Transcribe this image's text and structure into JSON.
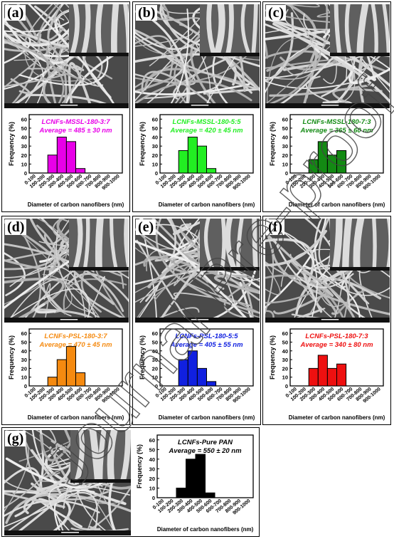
{
  "panels": [
    {
      "label": "(a)",
      "chart_data": {
        "type": "bar",
        "title": "LCNFs-MSSL-180-3:7",
        "subtitle": "Average = 485 ± 30 nm",
        "color": "#e800e8",
        "categories": [
          "0-100",
          "100-200",
          "200-300",
          "300-400",
          "400-500",
          "500-600",
          "600-700",
          "700-800",
          "800-900",
          "900-1000"
        ],
        "values": [
          0,
          0,
          20,
          40,
          35,
          5,
          0,
          0,
          0,
          0
        ],
        "xlabel": "Diameter of carbon nanofibers (nm)",
        "ylabel": "Frequency (%)",
        "ylim": [
          0,
          65
        ],
        "yticks": [
          0,
          10,
          20,
          30,
          40,
          50,
          60
        ]
      }
    },
    {
      "label": "(b)",
      "chart_data": {
        "type": "bar",
        "title": "LCNFs-MSSL-180-5:5",
        "subtitle": "Average = 420 ± 45 nm",
        "color": "#22ee22",
        "categories": [
          "0-100",
          "100-200",
          "200-300",
          "300-400",
          "400-500",
          "500-600",
          "600-700",
          "700-800",
          "800-900",
          "900-1000"
        ],
        "values": [
          0,
          0,
          25,
          40,
          30,
          5,
          0,
          0,
          0,
          0
        ],
        "xlabel": "Diameter of carbon nanofibers (nm)",
        "ylabel": "Frequency (%)",
        "ylim": [
          0,
          65
        ],
        "yticks": [
          0,
          10,
          20,
          30,
          40,
          50,
          60
        ]
      }
    },
    {
      "label": "(c)",
      "chart_data": {
        "type": "bar",
        "title": "LCNFs-MSSL-180-7:3",
        "subtitle": "Average = 365 ± 60 nm",
        "color": "#138a13",
        "categories": [
          "0-100",
          "100-200",
          "200-300",
          "300-400",
          "400-500",
          "500-600",
          "600-700",
          "700-800",
          "800-900",
          "900-1000"
        ],
        "values": [
          0,
          0,
          15,
          35,
          20,
          25,
          0,
          0,
          0,
          0
        ],
        "xlabel": "Diameter of carbon nanofibers (nm)",
        "ylabel": "Frequency (%)",
        "ylim": [
          0,
          65
        ],
        "yticks": [
          0,
          10,
          20,
          30,
          40,
          50,
          60
        ]
      }
    },
    {
      "label": "(d)",
      "chart_data": {
        "type": "bar",
        "title": "LCNFs-PSL-180-3:7",
        "subtitle": "Average = 470 ± 45 nm",
        "color": "#f58a10",
        "categories": [
          "0-100",
          "100-200",
          "200-300",
          "300-400",
          "400-500",
          "500-600",
          "600-700",
          "700-800",
          "800-900",
          "900-1000"
        ],
        "values": [
          0,
          0,
          10,
          30,
          45,
          15,
          0,
          0,
          0,
          0
        ],
        "xlabel": "Diameter of carbon nanofibers (nm)",
        "ylabel": "Frequency (%)",
        "ylim": [
          0,
          65
        ],
        "yticks": [
          0,
          10,
          20,
          30,
          40,
          50,
          60
        ]
      }
    },
    {
      "label": "(e)",
      "chart_data": {
        "type": "bar",
        "title": "LCNFs-PSL-180-5:5",
        "subtitle": "Average = 405 ± 55 nm",
        "color": "#1020e0",
        "categories": [
          "0-100",
          "100-200",
          "200-300",
          "300-400",
          "400-500",
          "500-600",
          "600-700",
          "700-800",
          "800-900",
          "900-1000"
        ],
        "values": [
          0,
          0,
          30,
          40,
          20,
          5,
          0,
          0,
          0,
          0
        ],
        "xlabel": "Diameter of carbon nanofibers (nm)",
        "ylabel": "Frequency (%)",
        "ylim": [
          0,
          65
        ],
        "yticks": [
          0,
          10,
          20,
          30,
          40,
          50,
          60
        ]
      }
    },
    {
      "label": "(f)",
      "chart_data": {
        "type": "bar",
        "title": "LCNFs-PSL-180-7:3",
        "subtitle": "Average = 340 ± 80 nm",
        "color": "#ee1010",
        "categories": [
          "0-100",
          "100-200",
          "200-300",
          "300-400",
          "400-500",
          "500-600",
          "600-700",
          "700-800",
          "800-900",
          "900-1000"
        ],
        "values": [
          0,
          0,
          20,
          35,
          20,
          25,
          0,
          0,
          0,
          0
        ],
        "xlabel": "Diameter of carbon nanofibers (nm)",
        "ylabel": "Frequency (%)",
        "ylim": [
          0,
          65
        ],
        "yticks": [
          0,
          10,
          20,
          30,
          40,
          50,
          60
        ]
      }
    },
    {
      "label": "(g)",
      "chart_data": {
        "type": "bar",
        "title": "LCNFs-Pure PAN",
        "subtitle": "Average = 550 ± 20 nm",
        "color": "#000000",
        "categories": [
          "0-100",
          "100-200",
          "200-300",
          "300-400",
          "400-500",
          "500-600",
          "600-700",
          "700-800",
          "800-900",
          "900-1000"
        ],
        "values": [
          0,
          0,
          10,
          40,
          45,
          5,
          0,
          0,
          0,
          0
        ],
        "xlabel": "Diameter of carbon nanofibers (nm)",
        "ylabel": "Frequency (%)",
        "ylim": [
          0,
          65
        ],
        "yticks": [
          0,
          10,
          20,
          30,
          40,
          50,
          60
        ]
      }
    }
  ],
  "watermark": "Journal Pre-proof"
}
